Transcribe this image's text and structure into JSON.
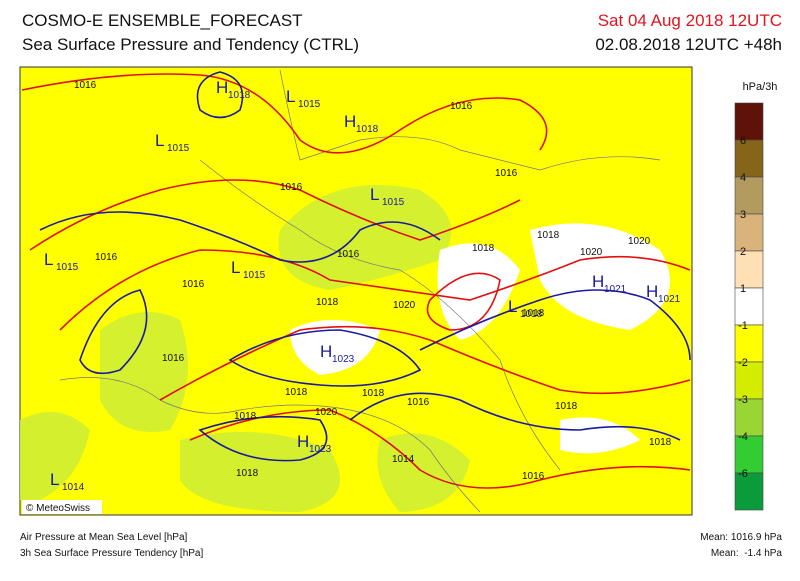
{
  "header": {
    "title": "COSMO-E ENSEMBLE_FORECAST",
    "subtitle": "Sea Surface Pressure and Tendency (CTRL)",
    "valid_time": "Sat 04 Aug 2018 12UTC",
    "run": "02.08.2018 12UTC +48h"
  },
  "colorbar": {
    "unit": "hPa/3h",
    "labels": [
      6,
      4,
      3,
      2,
      1,
      -1,
      -2,
      -3,
      -4,
      -6
    ],
    "colors": [
      "#5e1208",
      "#86641a",
      "#b39a5e",
      "#d9b27c",
      "#ffe0b4",
      "#ffffff",
      "#ffff00",
      "#d4ec00",
      "#9ad633",
      "#33cc33",
      "#0a9c3a"
    ]
  },
  "pressure_centers": [
    {
      "letter": "H",
      "value": "1018"
    },
    {
      "letter": "L",
      "value": "1015"
    },
    {
      "letter": "H",
      "value": "1018"
    },
    {
      "letter": "L",
      "value": "1015"
    },
    {
      "letter": "L",
      "value": "1015"
    },
    {
      "letter": "L",
      "value": "1015"
    },
    {
      "letter": "L",
      "value": "1015"
    },
    {
      "letter": "H",
      "value": "1021"
    },
    {
      "letter": "H",
      "value": "1021"
    },
    {
      "letter": "L",
      "value": "1018"
    },
    {
      "letter": "H",
      "value": "1023"
    },
    {
      "letter": "H",
      "value": "1023"
    },
    {
      "letter": "L",
      "value": "1014"
    }
  ],
  "isobar_labels": [
    "1016",
    "1016",
    "1016",
    "1016",
    "1016",
    "1016",
    "1016",
    "1016",
    "1018",
    "1018",
    "1018",
    "1018",
    "1018",
    "1018",
    "1018",
    "1018",
    "1018",
    "1018",
    "1020",
    "1020",
    "1020",
    "1020",
    "1016",
    "1016",
    "1014"
  ],
  "footer": {
    "credit": "© MeteoSwiss",
    "line1": "Air Pressure at Mean Sea Level [hPa]",
    "line2": "3h Sea Surface Pressure Tendency [hPa]",
    "mean1": "Mean: 1016.9 hPa",
    "mean2": "Mean:  -1.4 hPa"
  }
}
